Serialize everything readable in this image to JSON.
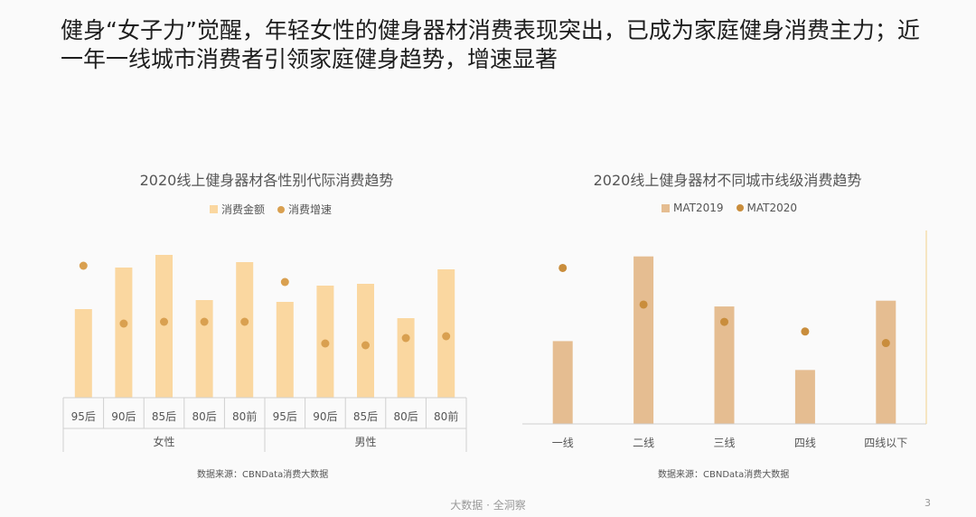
{
  "headline": "健身“女子力”觉醒，年轻女性的健身器材消费表现突出，已成为家庭健身消费主力；近一年一线城市消费者引领家庭健身趋势，增速显著",
  "chart_data": [
    {
      "type": "bar",
      "title": "2020线上健身器材各性别代际消费趋势",
      "legend": [
        "消费金额",
        "消费增速"
      ],
      "groups": [
        "女性",
        "男性"
      ],
      "categories": [
        "95后",
        "90后",
        "85后",
        "80后",
        "80前",
        "95后",
        "90后",
        "85后",
        "80后",
        "80前"
      ],
      "series": [
        {
          "name": "消费金额",
          "kind": "bar",
          "color": "#fad7a0",
          "values": [
            0.49,
            0.72,
            0.79,
            0.54,
            0.75,
            0.53,
            0.62,
            0.63,
            0.44,
            0.71
          ]
        },
        {
          "name": "消费增速",
          "kind": "dot",
          "color": "#d9a050",
          "values": [
            0.73,
            0.41,
            0.42,
            0.42,
            0.42,
            0.64,
            0.3,
            0.29,
            0.33,
            0.34
          ]
        }
      ],
      "ylim": [
        0,
        1
      ]
    },
    {
      "type": "bar",
      "title": "2020线上健身器材不同城市线级消费趋势",
      "legend": [
        "MAT2019",
        "MAT2020"
      ],
      "categories": [
        "一线",
        "二线",
        "三线",
        "四线",
        "四线以下"
      ],
      "series": [
        {
          "name": "MAT2019",
          "kind": "bar",
          "color": "#e5bd91",
          "values": [
            0.43,
            0.87,
            0.61,
            0.28,
            0.64
          ]
        },
        {
          "name": "MAT2020",
          "kind": "dot",
          "color": "#c98d3c",
          "values": [
            0.81,
            0.62,
            0.53,
            0.48,
            0.42
          ]
        }
      ],
      "ylim": [
        0,
        1
      ]
    }
  ],
  "source_left": "数据来源：CBNData消费大数据",
  "source_right": "数据来源：CBNData消费大数据",
  "footer": "大数据 · 全洞察",
  "page_number": "3"
}
